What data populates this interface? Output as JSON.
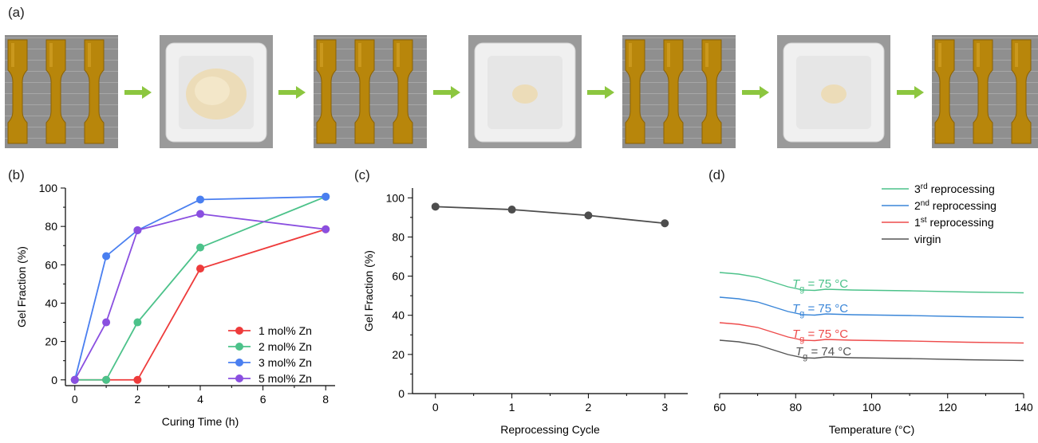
{
  "panels": {
    "a": "(a)",
    "b": "(b)",
    "c": "(c)",
    "d": "(d)"
  },
  "photo_sequence": [
    {
      "kind": "dogbone-samples"
    },
    {
      "kind": "ground-powder"
    },
    {
      "kind": "dogbone-samples"
    },
    {
      "kind": "ground-powder"
    },
    {
      "kind": "dogbone-samples"
    },
    {
      "kind": "ground-powder"
    },
    {
      "kind": "dogbone-samples"
    }
  ],
  "arrow_color": "#8cc63f",
  "chart_data": [
    {
      "panel": "b",
      "type": "line",
      "xlabel": "Curing Time (h)",
      "ylabel": "Gel Fraction (%)",
      "xlim": [
        -0.3,
        8.3
      ],
      "ylim": [
        -3,
        100
      ],
      "xticks": [
        0,
        2,
        4,
        6,
        8
      ],
      "yticks": [
        0,
        20,
        40,
        60,
        80,
        100
      ],
      "legend_position": "bottom-right",
      "series": [
        {
          "name": "1 mol% Zn",
          "color": "#ee3b3b",
          "x": [
            0,
            1,
            2,
            4,
            8
          ],
          "y": [
            0,
            0,
            0,
            58,
            78.5
          ]
        },
        {
          "name": "2 mol% Zn",
          "color": "#4cc28a",
          "x": [
            0,
            1,
            2,
            4,
            8
          ],
          "y": [
            0,
            0,
            30,
            69,
            95.5
          ]
        },
        {
          "name": "3 mol% Zn",
          "color": "#4a7ff0",
          "x": [
            0,
            1,
            2,
            4,
            8
          ],
          "y": [
            0,
            64.5,
            78,
            94,
            95.5
          ]
        },
        {
          "name": "5 mol% Zn",
          "color": "#8a4fe0",
          "x": [
            0,
            1,
            2,
            4,
            8
          ],
          "y": [
            0,
            30,
            78,
            86.5,
            78.5
          ]
        }
      ]
    },
    {
      "panel": "c",
      "type": "line",
      "xlabel": "Reprocessing Cycle",
      "ylabel": "Gel Fraction (%)",
      "xlim": [
        -0.3,
        3.3
      ],
      "ylim": [
        0,
        105
      ],
      "xticks": [
        0,
        1,
        2,
        3
      ],
      "yticks": [
        0,
        20,
        40,
        60,
        80,
        100
      ],
      "series": [
        {
          "color": "#4d4d4d",
          "x": [
            0,
            1,
            2,
            3
          ],
          "y": [
            95.5,
            94,
            91,
            87
          ]
        }
      ]
    },
    {
      "panel": "d",
      "type": "line",
      "xlabel": "Temperature (°C)",
      "xlim": [
        60,
        140
      ],
      "xticks": [
        60,
        80,
        100,
        120,
        140
      ],
      "y_axis": "none",
      "legend_position": "top-right",
      "series": [
        {
          "name": "virgin",
          "color": "#555555",
          "tg_label": "= 74 °C",
          "offset": 0
        },
        {
          "name": "1st reprocessing",
          "name_base": "1",
          "name_sup": "st",
          "name_rest": " reprocessing",
          "color": "#ee4b4b",
          "tg_label": "= 75 °C",
          "offset": 1
        },
        {
          "name": "2nd reprocessing",
          "name_base": "2",
          "name_sup": "nd",
          "name_rest": " reprocessing",
          "color": "#3a86d8",
          "tg_label": "= 75 °C",
          "offset": 2
        },
        {
          "name": "3rd reprocessing",
          "name_base": "3",
          "name_sup": "rd",
          "name_rest": " reprocessing",
          "color": "#4cc28a",
          "tg_label": "= 75 °C",
          "offset": 3
        }
      ],
      "tg_symbol": "T",
      "tg_subscript": "g"
    }
  ]
}
